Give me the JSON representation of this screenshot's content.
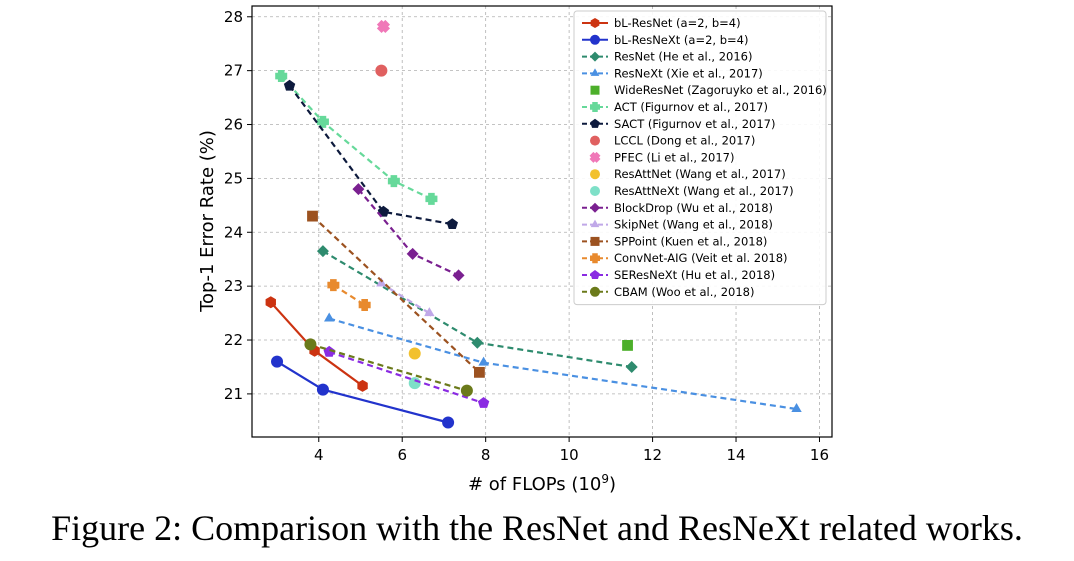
{
  "caption": "Figure 2: Comparison with the ResNet and ResNeXt related works.",
  "chart_data": {
    "type": "line",
    "title": "",
    "xlabel": "# of FLOPs (10^9)",
    "xlabel_base": "# of FLOPs (10",
    "xlabel_exp": "9",
    "xlabel_close": ")",
    "ylabel": "Top-1 Error Rate (%)",
    "xlim": [
      2.4,
      16.3
    ],
    "ylim": [
      20.2,
      28.2
    ],
    "xticks": [
      4,
      6,
      8,
      10,
      12,
      14,
      16
    ],
    "yticks": [
      21,
      22,
      23,
      24,
      25,
      26,
      27,
      28
    ],
    "grid": true,
    "legend_position": "top-right",
    "series": [
      {
        "name": "bL-ResNet (a=2, b=4)",
        "color": "#cc3311",
        "marker": "hexagon",
        "line": "solid",
        "x": [
          2.85,
          3.9,
          5.05
        ],
        "y": [
          22.7,
          21.8,
          21.15
        ]
      },
      {
        "name": "bL-ResNeXt (a=2, b=4)",
        "color": "#2233cc",
        "marker": "circle",
        "line": "solid",
        "x": [
          3.0,
          4.1,
          7.1
        ],
        "y": [
          21.6,
          21.08,
          20.47
        ]
      },
      {
        "name": "ResNet (He et al., 2016)",
        "color": "#2e8b6e",
        "marker": "diamond",
        "line": "dashed",
        "x": [
          4.1,
          7.8,
          11.5
        ],
        "y": [
          23.65,
          21.95,
          21.5
        ]
      },
      {
        "name": "ResNeXt (Xie et al., 2017)",
        "color": "#4a90e2",
        "marker": "triangle",
        "line": "dashed",
        "x": [
          4.25,
          7.95,
          15.45
        ],
        "y": [
          22.4,
          21.58,
          20.72
        ]
      },
      {
        "name": "WideResNet (Zagoruyko et al., 2016)",
        "color": "#4caf2a",
        "marker": "square",
        "line": "none",
        "x": [
          11.4
        ],
        "y": [
          21.9
        ]
      },
      {
        "name": "ACT (Figurnov et al., 2017)",
        "color": "#66d99a",
        "marker": "plus",
        "line": "dashed",
        "x": [
          3.1,
          4.1,
          5.8,
          6.7
        ],
        "y": [
          26.9,
          26.05,
          24.95,
          24.62
        ]
      },
      {
        "name": "SACT (Figurnov et al., 2017)",
        "color": "#0d1a3d",
        "marker": "pentagon",
        "line": "dashed",
        "x": [
          3.3,
          5.55,
          7.2
        ],
        "y": [
          26.72,
          24.38,
          24.15
        ]
      },
      {
        "name": "LCCL (Dong et al., 2017)",
        "color": "#e06060",
        "marker": "circle",
        "line": "none",
        "x": [
          5.5
        ],
        "y": [
          27.0
        ]
      },
      {
        "name": "PFEC (Li et al., 2017)",
        "color": "#f078b8",
        "marker": "x",
        "line": "none",
        "x": [
          5.55
        ],
        "y": [
          27.82
        ]
      },
      {
        "name": "ResAttNet (Wang et al., 2017)",
        "color": "#f2c12e",
        "marker": "circle",
        "line": "none",
        "x": [
          6.3
        ],
        "y": [
          21.75
        ]
      },
      {
        "name": "ResAttNeXt (Wang et al., 2017)",
        "color": "#7ee0c8",
        "marker": "circle",
        "line": "none",
        "x": [
          6.3
        ],
        "y": [
          21.2
        ]
      },
      {
        "name": "BlockDrop (Wu et al., 2018)",
        "color": "#7a2090",
        "marker": "diamond",
        "line": "dashed",
        "x": [
          4.95,
          6.25,
          7.35
        ],
        "y": [
          24.8,
          23.6,
          23.2
        ]
      },
      {
        "name": "SkipNet (Wang et al., 2018)",
        "color": "#c0a8e8",
        "marker": "triangle",
        "line": "dashed",
        "x": [
          5.5,
          6.65
        ],
        "y": [
          23.05,
          22.5
        ]
      },
      {
        "name": "SPPoint (Kuen et al., 2018)",
        "color": "#9c5220",
        "marker": "square",
        "line": "dashed",
        "x": [
          3.85,
          7.85
        ],
        "y": [
          24.3,
          21.4
        ]
      },
      {
        "name": "ConvNet-AIG (Veit et al. 2018)",
        "color": "#e88a2e",
        "marker": "plus",
        "line": "dashed",
        "x": [
          4.35,
          5.1
        ],
        "y": [
          23.02,
          22.65
        ]
      },
      {
        "name": "SEResNeXt (Hu et al., 2018)",
        "color": "#8a2be2",
        "marker": "pentagon",
        "line": "dashed",
        "x": [
          4.25,
          7.95
        ],
        "y": [
          21.78,
          20.83
        ]
      },
      {
        "name": "CBAM (Woo et al., 2018)",
        "color": "#6b7a1a",
        "marker": "circle",
        "line": "dashed",
        "x": [
          3.8,
          7.55
        ],
        "y": [
          21.92,
          21.06
        ]
      }
    ]
  }
}
